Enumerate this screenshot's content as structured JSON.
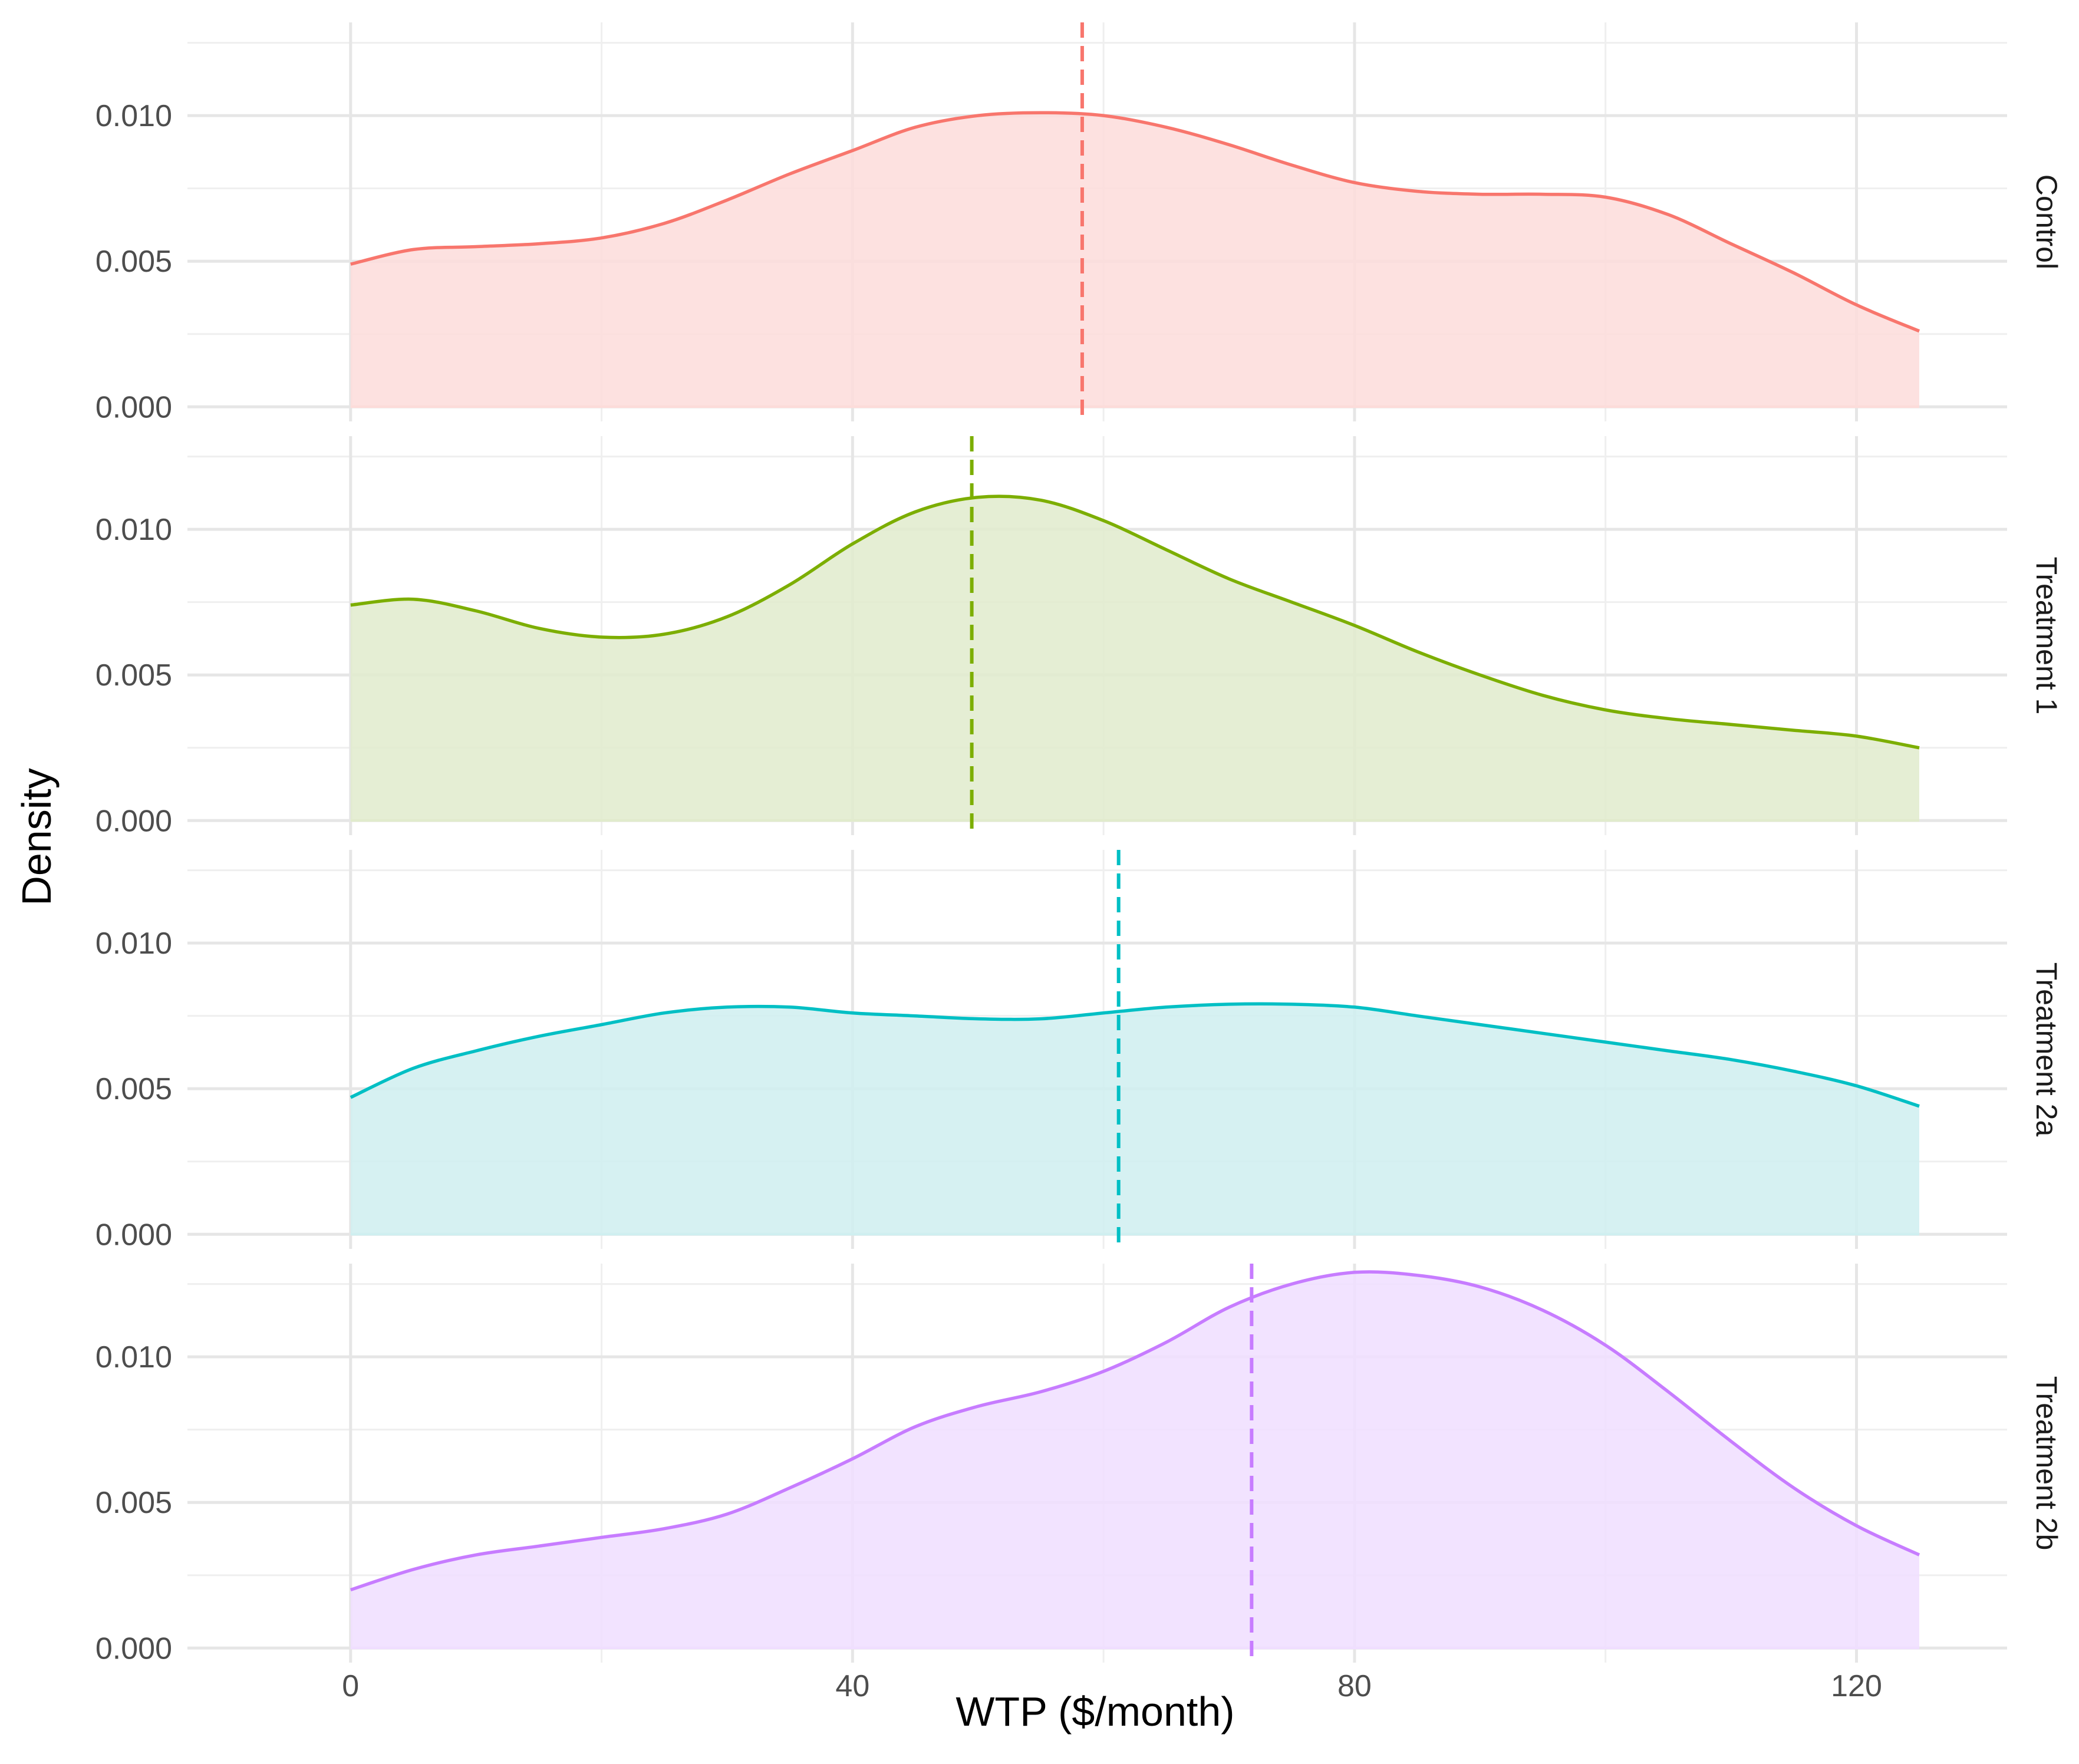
{
  "chart_data": {
    "type": "area",
    "subtype": "faceted-density",
    "xlabel": "WTP ($/month)",
    "ylabel": "Density",
    "xlim": [
      -13,
      132
    ],
    "ylim": [
      -0.0005,
      0.0132
    ],
    "x_ticks": [
      {
        "value": 0,
        "label": "0"
      },
      {
        "value": 40,
        "label": "40"
      },
      {
        "value": 80,
        "label": "80"
      },
      {
        "value": 120,
        "label": "120"
      }
    ],
    "x_minor_ticks": [
      20,
      60,
      100
    ],
    "y_ticks": [
      {
        "value": 0.0,
        "label": "0.000"
      },
      {
        "value": 0.005,
        "label": "0.005"
      },
      {
        "value": 0.01,
        "label": "0.010"
      }
    ],
    "y_minor_ticks": [
      0.0025,
      0.0075,
      0.0125
    ],
    "grid": true,
    "legend": "none",
    "facets": [
      {
        "name": "Control",
        "color": "#F8766D",
        "fill": "#FDDCDA",
        "mean": 58.3,
        "x": [
          0,
          5,
          10,
          15,
          20,
          25,
          30,
          35,
          40,
          45,
          50,
          55,
          60,
          65,
          70,
          75,
          80,
          85,
          90,
          95,
          100,
          105,
          110,
          115,
          120,
          125
        ],
        "y": [
          0.0049,
          0.0054,
          0.0055,
          0.0056,
          0.0058,
          0.0063,
          0.0071,
          0.008,
          0.0088,
          0.0096,
          0.01,
          0.0101,
          0.01,
          0.0096,
          0.009,
          0.0083,
          0.0077,
          0.0074,
          0.0073,
          0.0073,
          0.0072,
          0.0066,
          0.0056,
          0.0046,
          0.0035,
          0.0026
        ]
      },
      {
        "name": "Treatment 1",
        "color": "#7CAE00",
        "fill": "#E1EBCC",
        "mean": 49.5,
        "x": [
          0,
          5,
          10,
          15,
          20,
          25,
          30,
          35,
          40,
          45,
          50,
          55,
          60,
          65,
          70,
          75,
          80,
          85,
          90,
          95,
          100,
          105,
          110,
          115,
          120,
          125
        ],
        "y": [
          0.0074,
          0.0076,
          0.0072,
          0.0066,
          0.0063,
          0.0064,
          0.007,
          0.0081,
          0.0095,
          0.0106,
          0.0111,
          0.011,
          0.0103,
          0.0093,
          0.0083,
          0.0075,
          0.0067,
          0.0058,
          0.005,
          0.0043,
          0.0038,
          0.0035,
          0.0033,
          0.0031,
          0.0029,
          0.0025
        ]
      },
      {
        "name": "Treatment 2a",
        "color": "#00BFC4",
        "fill": "#CFEFF0",
        "mean": 61.2,
        "x": [
          0,
          5,
          10,
          15,
          20,
          25,
          30,
          35,
          40,
          45,
          50,
          55,
          60,
          65,
          70,
          75,
          80,
          85,
          90,
          95,
          100,
          105,
          110,
          115,
          120,
          125
        ],
        "y": [
          0.0047,
          0.0057,
          0.0063,
          0.0068,
          0.0072,
          0.0076,
          0.0078,
          0.0078,
          0.0076,
          0.0075,
          0.0074,
          0.0074,
          0.0076,
          0.0078,
          0.0079,
          0.0079,
          0.0078,
          0.0075,
          0.0072,
          0.0069,
          0.0066,
          0.0063,
          0.006,
          0.0056,
          0.0051,
          0.0044
        ]
      },
      {
        "name": "Treatment 2b",
        "color": "#C77CFF",
        "fill": "#F0DEFF",
        "mean": 71.8,
        "x": [
          0,
          5,
          10,
          15,
          20,
          25,
          30,
          35,
          40,
          45,
          50,
          55,
          60,
          65,
          70,
          75,
          80,
          85,
          90,
          95,
          100,
          105,
          110,
          115,
          120,
          125
        ],
        "y": [
          0.002,
          0.0027,
          0.0032,
          0.0035,
          0.0038,
          0.0041,
          0.0046,
          0.0055,
          0.0065,
          0.0076,
          0.0083,
          0.0088,
          0.0095,
          0.0105,
          0.0117,
          0.0125,
          0.0129,
          0.0128,
          0.0124,
          0.0116,
          0.0104,
          0.0088,
          0.0071,
          0.0055,
          0.0042,
          0.0032
        ]
      }
    ]
  }
}
